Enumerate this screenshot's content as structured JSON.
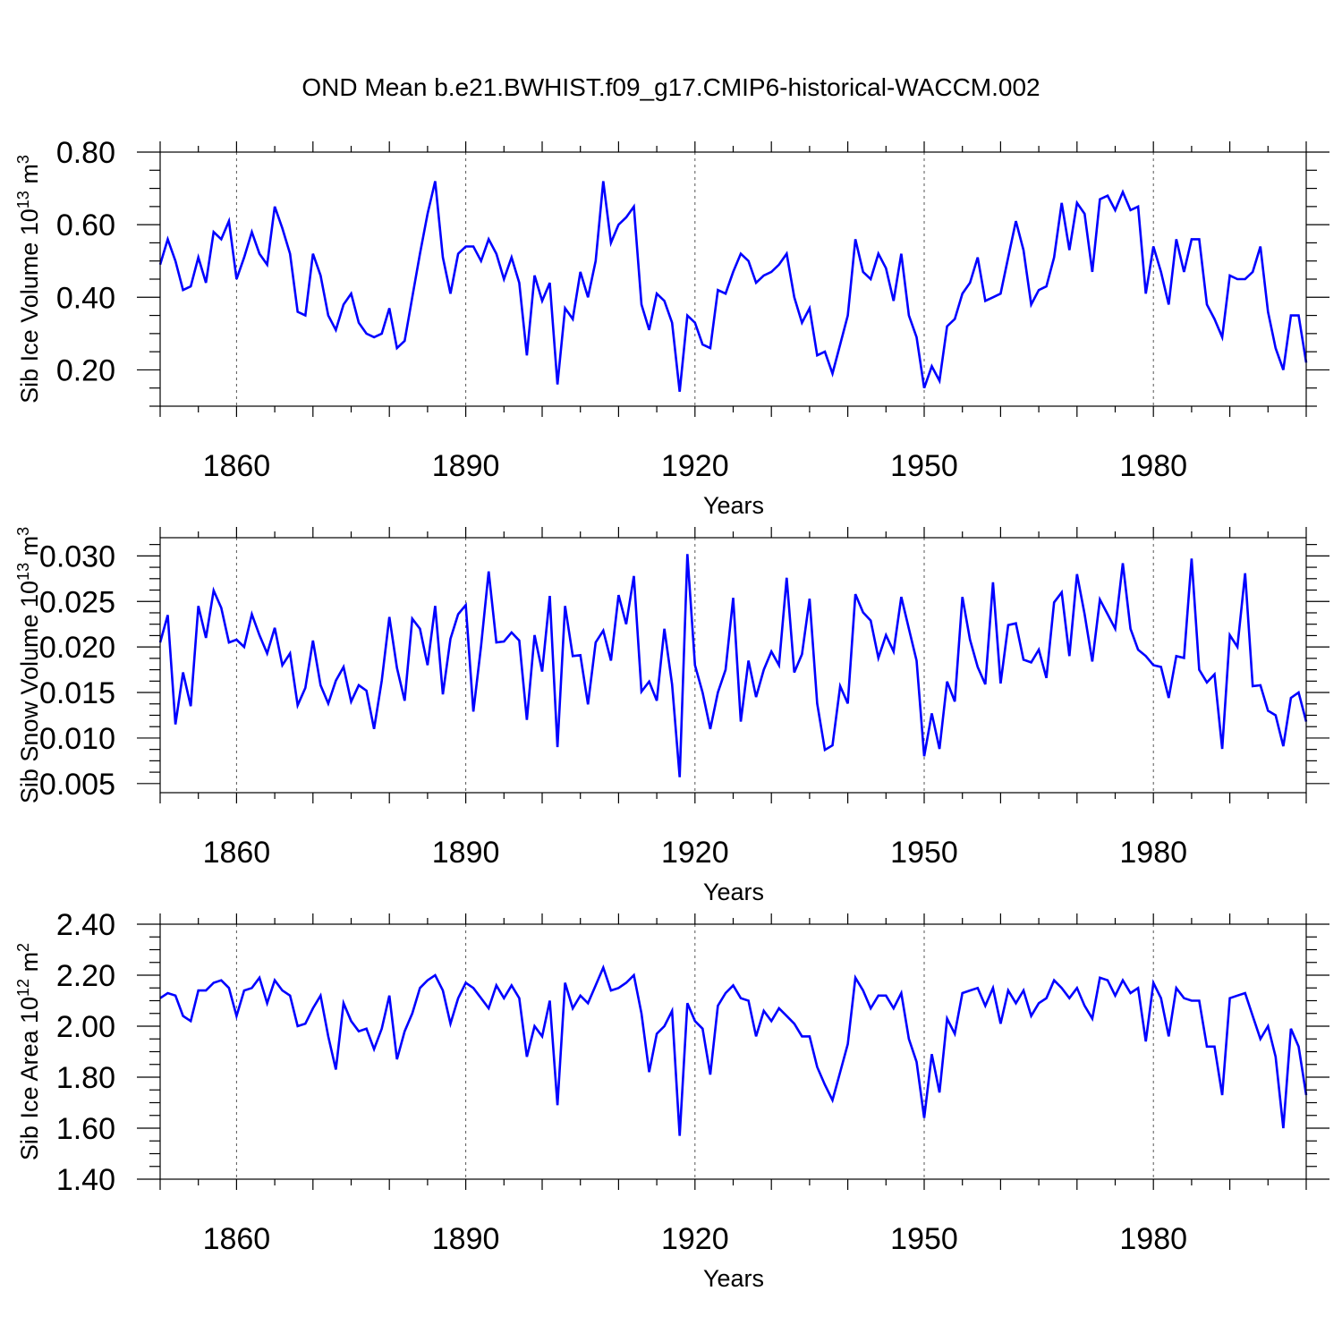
{
  "title": "OND Mean b.e21.BWHIST.f09_g17.CMIP6-historical-WACCM.002",
  "chart_data": [
    {
      "type": "line",
      "ylabel": "Sib Ice Volume 10",
      "ylabel_exp": "13",
      "ylabel_unit": " m",
      "ylabel_unit_exp": "3",
      "xlabel": "Years",
      "xlim": [
        1850,
        2000
      ],
      "ylim": [
        0.1,
        0.8
      ],
      "yticks": [
        0.2,
        0.4,
        0.6,
        0.8
      ],
      "ytick_labels": [
        "0.20",
        "0.40",
        "0.60",
        "0.80"
      ],
      "xticks": [
        1860,
        1890,
        1920,
        1950,
        1980
      ],
      "xtick_labels": [
        "1860",
        "1890",
        "1920",
        "1950",
        "1980"
      ],
      "color": "#0000ff",
      "x_start": 1850,
      "values": [
        0.49,
        0.56,
        0.5,
        0.42,
        0.43,
        0.51,
        0.44,
        0.58,
        0.56,
        0.61,
        0.45,
        0.51,
        0.58,
        0.52,
        0.49,
        0.65,
        0.59,
        0.52,
        0.36,
        0.35,
        0.52,
        0.46,
        0.35,
        0.31,
        0.38,
        0.41,
        0.33,
        0.3,
        0.29,
        0.3,
        0.37,
        0.26,
        0.28,
        0.4,
        0.52,
        0.63,
        0.72,
        0.51,
        0.41,
        0.52,
        0.54,
        0.54,
        0.5,
        0.56,
        0.52,
        0.45,
        0.51,
        0.44,
        0.24,
        0.46,
        0.39,
        0.44,
        0.16,
        0.37,
        0.34,
        0.47,
        0.4,
        0.5,
        0.72,
        0.55,
        0.6,
        0.62,
        0.65,
        0.38,
        0.31,
        0.41,
        0.39,
        0.33,
        0.14,
        0.35,
        0.33,
        0.27,
        0.26,
        0.42,
        0.41,
        0.47,
        0.52,
        0.5,
        0.44,
        0.46,
        0.47,
        0.49,
        0.52,
        0.4,
        0.33,
        0.37,
        0.24,
        0.25,
        0.19,
        0.27,
        0.35,
        0.56,
        0.47,
        0.45,
        0.52,
        0.48,
        0.39,
        0.52,
        0.35,
        0.29,
        0.15,
        0.21,
        0.17,
        0.32,
        0.34,
        0.41,
        0.44,
        0.51,
        0.39,
        0.4,
        0.41,
        0.51,
        0.61,
        0.53,
        0.38,
        0.42,
        0.43,
        0.51,
        0.66,
        0.53,
        0.66,
        0.63,
        0.47,
        0.67,
        0.68,
        0.64,
        0.69,
        0.64,
        0.65,
        0.41,
        0.54,
        0.47,
        0.38,
        0.56,
        0.47,
        0.56,
        0.56,
        0.38,
        0.34,
        0.29,
        0.46,
        0.45,
        0.45,
        0.47,
        0.54,
        0.36,
        0.26,
        0.2,
        0.35,
        0.35,
        0.22
      ]
    },
    {
      "type": "line",
      "ylabel": "Sib Snow Volume 10",
      "ylabel_exp": "13",
      "ylabel_unit": " m",
      "ylabel_unit_exp": "3",
      "xlabel": "Years",
      "xlim": [
        1850,
        2000
      ],
      "ylim": [
        0.004,
        0.032
      ],
      "yticks": [
        0.005,
        0.01,
        0.015,
        0.02,
        0.025,
        0.03
      ],
      "ytick_labels": [
        "0.005",
        "0.010",
        "0.015",
        "0.020",
        "0.025",
        "0.030"
      ],
      "xticks": [
        1860,
        1890,
        1920,
        1950,
        1980
      ],
      "xtick_labels": [
        "1860",
        "1890",
        "1920",
        "1950",
        "1980"
      ],
      "color": "#0000ff",
      "x_start": 1850,
      "values": [
        0.0205,
        0.0235,
        0.0115,
        0.0172,
        0.0135,
        0.0245,
        0.021,
        0.0262,
        0.0243,
        0.0205,
        0.0208,
        0.02,
        0.0236,
        0.0213,
        0.0193,
        0.0221,
        0.018,
        0.0193,
        0.0136,
        0.0155,
        0.0207,
        0.0158,
        0.0138,
        0.0163,
        0.0178,
        0.014,
        0.0158,
        0.0152,
        0.011,
        0.0163,
        0.0233,
        0.0177,
        0.0141,
        0.0231,
        0.022,
        0.018,
        0.0245,
        0.0148,
        0.0209,
        0.0236,
        0.0246,
        0.0129,
        0.0201,
        0.0283,
        0.0205,
        0.0206,
        0.0216,
        0.0207,
        0.012,
        0.0213,
        0.0173,
        0.0256,
        0.009,
        0.0245,
        0.019,
        0.0191,
        0.0137,
        0.0205,
        0.0218,
        0.0185,
        0.0257,
        0.0225,
        0.0278,
        0.0151,
        0.0162,
        0.0141,
        0.022,
        0.0159,
        0.0057,
        0.0302,
        0.018,
        0.015,
        0.011,
        0.015,
        0.0175,
        0.0254,
        0.0118,
        0.0185,
        0.0145,
        0.0175,
        0.0195,
        0.018,
        0.0276,
        0.0172,
        0.0192,
        0.0253,
        0.0138,
        0.0087,
        0.0092,
        0.0157,
        0.0138,
        0.0258,
        0.0238,
        0.0229,
        0.0188,
        0.0213,
        0.0195,
        0.0255,
        0.022,
        0.0185,
        0.008,
        0.0127,
        0.0088,
        0.0162,
        0.014,
        0.0255,
        0.0208,
        0.0178,
        0.0159,
        0.0271,
        0.016,
        0.0224,
        0.0226,
        0.0186,
        0.0183,
        0.0197,
        0.0166,
        0.0249,
        0.026,
        0.019,
        0.028,
        0.0236,
        0.0184,
        0.0252,
        0.0236,
        0.022,
        0.0292,
        0.022,
        0.0197,
        0.019,
        0.018,
        0.0178,
        0.0144,
        0.019,
        0.0188,
        0.0297,
        0.0175,
        0.0161,
        0.017,
        0.0088,
        0.0213,
        0.02,
        0.0281,
        0.0157,
        0.0158,
        0.013,
        0.0125,
        0.0091,
        0.0144,
        0.015,
        0.0118
      ]
    },
    {
      "type": "line",
      "ylabel": "Sib Ice Area 10",
      "ylabel_exp": "12",
      "ylabel_unit": " m",
      "ylabel_unit_exp": "2",
      "xlabel": "Years",
      "xlim": [
        1850,
        2000
      ],
      "ylim": [
        1.4,
        2.4
      ],
      "yticks": [
        1.4,
        1.6,
        1.8,
        2.0,
        2.2,
        2.4
      ],
      "ytick_labels": [
        "1.40",
        "1.60",
        "1.80",
        "2.00",
        "2.20",
        "2.40"
      ],
      "xticks": [
        1860,
        1890,
        1920,
        1950,
        1980
      ],
      "xtick_labels": [
        "1860",
        "1890",
        "1920",
        "1950",
        "1980"
      ],
      "color": "#0000ff",
      "x_start": 1850,
      "values": [
        2.11,
        2.13,
        2.12,
        2.04,
        2.02,
        2.14,
        2.14,
        2.17,
        2.18,
        2.15,
        2.04,
        2.14,
        2.15,
        2.19,
        2.09,
        2.18,
        2.14,
        2.12,
        2.0,
        2.01,
        2.07,
        2.12,
        1.96,
        1.83,
        2.09,
        2.02,
        1.98,
        1.99,
        1.91,
        1.99,
        2.12,
        1.87,
        1.98,
        2.05,
        2.15,
        2.18,
        2.2,
        2.14,
        2.01,
        2.11,
        2.17,
        2.15,
        2.11,
        2.07,
        2.16,
        2.11,
        2.16,
        2.11,
        1.88,
        2.0,
        1.96,
        2.1,
        1.69,
        2.17,
        2.07,
        2.12,
        2.09,
        2.16,
        2.23,
        2.14,
        2.15,
        2.17,
        2.2,
        2.05,
        1.82,
        1.97,
        2.0,
        2.06,
        1.57,
        2.09,
        2.02,
        1.99,
        1.81,
        2.08,
        2.13,
        2.16,
        2.11,
        2.1,
        1.96,
        2.06,
        2.02,
        2.07,
        2.04,
        2.01,
        1.96,
        1.96,
        1.84,
        1.77,
        1.71,
        1.82,
        1.93,
        2.19,
        2.14,
        2.07,
        2.12,
        2.12,
        2.07,
        2.13,
        1.95,
        1.86,
        1.64,
        1.89,
        1.74,
        2.03,
        1.97,
        2.13,
        2.14,
        2.15,
        2.08,
        2.15,
        2.01,
        2.14,
        2.09,
        2.14,
        2.04,
        2.09,
        2.11,
        2.18,
        2.15,
        2.11,
        2.15,
        2.08,
        2.03,
        2.19,
        2.18,
        2.12,
        2.18,
        2.13,
        2.15,
        1.94,
        2.17,
        2.11,
        1.96,
        2.15,
        2.11,
        2.1,
        2.1,
        1.92,
        1.92,
        1.73,
        2.11,
        2.12,
        2.13,
        2.04,
        1.95,
        2.0,
        1.88,
        1.6,
        1.99,
        1.92,
        1.73
      ]
    }
  ]
}
